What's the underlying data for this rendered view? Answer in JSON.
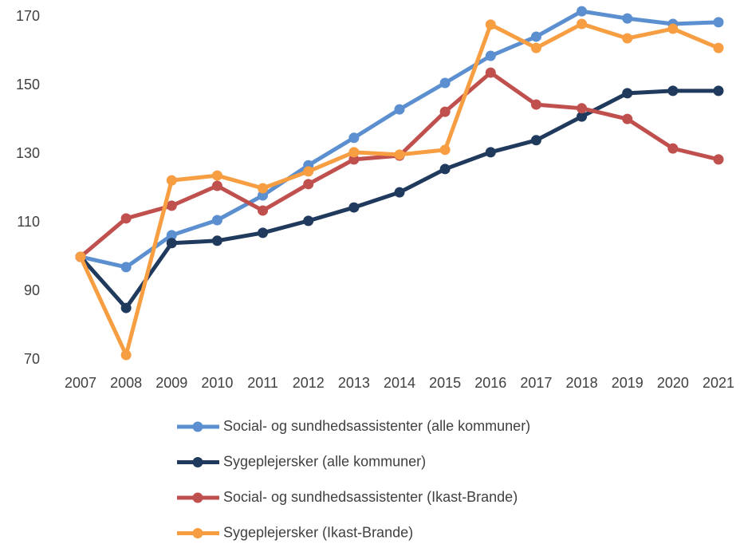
{
  "chart_data": {
    "type": "line",
    "categories": [
      "2007",
      "2008",
      "2009",
      "2010",
      "2011",
      "2012",
      "2013",
      "2014",
      "2015",
      "2016",
      "2017",
      "2018",
      "2019",
      "2020",
      "2021"
    ],
    "series": [
      {
        "name": "Social- og sundhedsassistenter (alle kommuner)",
        "color": "#5b8fcf",
        "values": [
          100,
          97,
          106.3,
          110.7,
          117.9,
          126.7,
          134.7,
          143,
          150.7,
          158.6,
          164.2,
          171.6,
          169.5,
          167.9,
          168.4
        ]
      },
      {
        "name": "Sygeplejersker (alle kommuner)",
        "color": "#203a5e",
        "values": [
          100,
          85.1,
          104,
          104.7,
          107,
          110.5,
          114.4,
          118.8,
          125.6,
          130.5,
          134,
          140.9,
          147.7,
          148.4,
          148.4
        ]
      },
      {
        "name": "Social- og sundhedsassistenter (Ikast-Brande)",
        "color": "#c0504d",
        "values": [
          100,
          111.2,
          114.9,
          120.7,
          113.5,
          121.2,
          128.4,
          129.5,
          142.3,
          153.7,
          144.4,
          143.3,
          140.2,
          131.6,
          128.4
        ]
      },
      {
        "name": "Sygeplejersker (Ikast-Brande)",
        "color": "#f79d42",
        "values": [
          100,
          71.4,
          122.3,
          123.7,
          120,
          124.9,
          130.5,
          129.8,
          131.2,
          167.7,
          160.9,
          167.9,
          163.7,
          166.5,
          160.9
        ]
      }
    ],
    "ylim": [
      70,
      170
    ],
    "yticks": [
      70,
      90,
      110,
      130,
      150,
      170
    ],
    "grid": false,
    "legend": "bottom"
  }
}
